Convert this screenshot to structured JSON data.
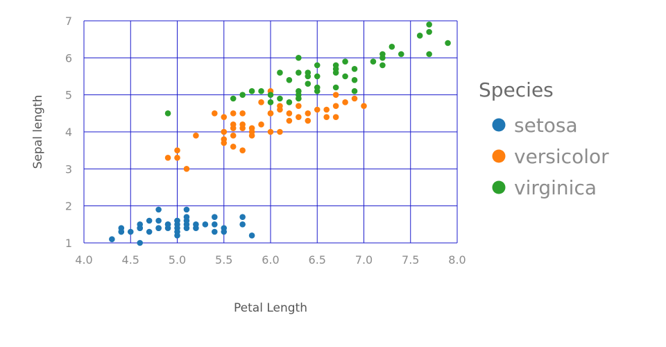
{
  "chart_data": {
    "type": "scatter",
    "xlabel": "Petal Length",
    "ylabel": "Sepal length",
    "xlim": [
      4.0,
      8.0
    ],
    "ylim": [
      1,
      7
    ],
    "x_ticks": [
      "4.0",
      "4.5",
      "5.0",
      "5.5",
      "6.0",
      "6.5",
      "7.0",
      "7.5",
      "8.0"
    ],
    "y_ticks": [
      "1",
      "2",
      "3",
      "4",
      "5",
      "6",
      "7"
    ],
    "grid": true,
    "grid_color": "#1a1acc",
    "legend": {
      "title": "Species",
      "position": "right"
    },
    "series": [
      {
        "name": "setosa",
        "color": "#1f77b4",
        "points": [
          [
            4.3,
            1.1
          ],
          [
            4.4,
            1.4
          ],
          [
            4.4,
            1.3
          ],
          [
            4.4,
            1.3
          ],
          [
            4.5,
            1.3
          ],
          [
            4.6,
            1.5
          ],
          [
            4.6,
            1.4
          ],
          [
            4.6,
            1.0
          ],
          [
            4.6,
            1.4
          ],
          [
            4.7,
            1.6
          ],
          [
            4.7,
            1.3
          ],
          [
            4.8,
            1.9
          ],
          [
            4.8,
            1.6
          ],
          [
            4.8,
            1.4
          ],
          [
            4.8,
            1.4
          ],
          [
            4.9,
            1.5
          ],
          [
            4.9,
            1.4
          ],
          [
            4.9,
            1.5
          ],
          [
            5.0,
            1.6
          ],
          [
            5.0,
            1.5
          ],
          [
            5.0,
            1.4
          ],
          [
            5.0,
            1.3
          ],
          [
            5.0,
            1.2
          ],
          [
            5.0,
            1.6
          ],
          [
            5.1,
            1.9
          ],
          [
            5.1,
            1.7
          ],
          [
            5.1,
            1.5
          ],
          [
            5.1,
            1.4
          ],
          [
            5.1,
            1.6
          ],
          [
            5.2,
            1.5
          ],
          [
            5.2,
            1.4
          ],
          [
            5.3,
            1.5
          ],
          [
            5.4,
            1.7
          ],
          [
            5.4,
            1.5
          ],
          [
            5.4,
            1.3
          ],
          [
            5.5,
            1.4
          ],
          [
            5.5,
            1.3
          ],
          [
            5.7,
            1.7
          ],
          [
            5.7,
            1.5
          ],
          [
            5.8,
            1.2
          ]
        ]
      },
      {
        "name": "versicolor",
        "color": "#ff7f0e",
        "points": [
          [
            4.9,
            3.3
          ],
          [
            5.0,
            3.5
          ],
          [
            5.0,
            3.3
          ],
          [
            5.1,
            3.0
          ],
          [
            5.2,
            3.9
          ],
          [
            5.4,
            4.5
          ],
          [
            5.5,
            4.0
          ],
          [
            5.5,
            4.4
          ],
          [
            5.5,
            3.8
          ],
          [
            5.5,
            3.7
          ],
          [
            5.5,
            4.0
          ],
          [
            5.6,
            4.5
          ],
          [
            5.6,
            3.6
          ],
          [
            5.6,
            4.2
          ],
          [
            5.6,
            3.9
          ],
          [
            5.6,
            4.1
          ],
          [
            5.7,
            4.5
          ],
          [
            5.7,
            4.2
          ],
          [
            5.7,
            4.1
          ],
          [
            5.7,
            3.5
          ],
          [
            5.8,
            4.1
          ],
          [
            5.8,
            3.9
          ],
          [
            5.8,
            4.0
          ],
          [
            5.9,
            4.8
          ],
          [
            5.9,
            4.2
          ],
          [
            6.0,
            4.5
          ],
          [
            6.0,
            5.1
          ],
          [
            6.0,
            4.0
          ],
          [
            6.0,
            4.5
          ],
          [
            6.1,
            4.7
          ],
          [
            6.1,
            4.0
          ],
          [
            6.1,
            4.6
          ],
          [
            6.2,
            4.5
          ],
          [
            6.2,
            4.3
          ],
          [
            6.3,
            4.9
          ],
          [
            6.3,
            4.7
          ],
          [
            6.3,
            4.4
          ],
          [
            6.4,
            4.5
          ],
          [
            6.4,
            4.3
          ],
          [
            6.5,
            4.6
          ],
          [
            6.6,
            4.6
          ],
          [
            6.6,
            4.4
          ],
          [
            6.7,
            4.7
          ],
          [
            6.7,
            5.0
          ],
          [
            6.7,
            4.4
          ],
          [
            6.8,
            4.8
          ],
          [
            6.9,
            4.9
          ],
          [
            7.0,
            4.7
          ]
        ]
      },
      {
        "name": "virginica",
        "color": "#2ca02c",
        "points": [
          [
            4.9,
            4.5
          ],
          [
            5.6,
            4.9
          ],
          [
            5.7,
            5.0
          ],
          [
            5.8,
            5.1
          ],
          [
            5.9,
            5.1
          ],
          [
            6.0,
            5.0
          ],
          [
            6.0,
            4.8
          ],
          [
            6.1,
            5.6
          ],
          [
            6.1,
            4.9
          ],
          [
            6.2,
            5.4
          ],
          [
            6.2,
            4.8
          ],
          [
            6.3,
            6.0
          ],
          [
            6.3,
            5.6
          ],
          [
            6.3,
            5.1
          ],
          [
            6.3,
            5.0
          ],
          [
            6.3,
            4.9
          ],
          [
            6.4,
            5.6
          ],
          [
            6.4,
            5.5
          ],
          [
            6.4,
            5.3
          ],
          [
            6.5,
            5.8
          ],
          [
            6.5,
            5.5
          ],
          [
            6.5,
            5.2
          ],
          [
            6.5,
            5.1
          ],
          [
            6.7,
            5.8
          ],
          [
            6.7,
            5.7
          ],
          [
            6.7,
            5.6
          ],
          [
            6.7,
            5.2
          ],
          [
            6.8,
            5.9
          ],
          [
            6.8,
            5.5
          ],
          [
            6.9,
            5.7
          ],
          [
            6.9,
            5.4
          ],
          [
            6.9,
            5.1
          ],
          [
            7.1,
            5.9
          ],
          [
            7.2,
            6.1
          ],
          [
            7.2,
            6.0
          ],
          [
            7.2,
            5.8
          ],
          [
            7.3,
            6.3
          ],
          [
            7.4,
            6.1
          ],
          [
            7.6,
            6.6
          ],
          [
            7.7,
            6.9
          ],
          [
            7.7,
            6.7
          ],
          [
            7.7,
            6.1
          ],
          [
            7.9,
            6.4
          ]
        ]
      }
    ]
  }
}
